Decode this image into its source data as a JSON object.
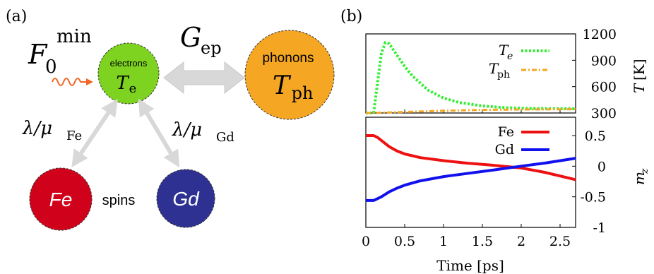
{
  "panel_a": {
    "label": "(a)",
    "fluence": {
      "main": "F",
      "sub": "0",
      "sup": "min"
    },
    "coupling_ep": {
      "main": "G",
      "sub": "ep"
    },
    "electrons": {
      "title": "electrons",
      "temp_main": "T",
      "temp_sub": "e",
      "color": "#7ed321"
    },
    "phonons": {
      "title": "phonons",
      "temp_main": "T",
      "temp_sub": "ph",
      "color": "#f5a623"
    },
    "coupling_fe": {
      "lambda": "λ/μ",
      "sub": "Fe"
    },
    "coupling_gd": {
      "lambda": "λ/μ",
      "sub": "Gd"
    },
    "fe_label": "Fe",
    "gd_label": "Gd",
    "spins_label": "spins",
    "fe_color": "#d0021b",
    "gd_color": "#2e3192",
    "arrow_color": "#d8d8d8",
    "laser_color": "#f26522"
  },
  "panel_b": {
    "label": "(b)",
    "x_label": "Time [ps]",
    "x_ticks": [
      "0",
      "0.5",
      "1",
      "1.5",
      "2",
      "2.5"
    ],
    "top_y_label_main": "T",
    "top_y_label_unit": "[K]",
    "top_y_ticks": [
      "300",
      "600",
      "900",
      "1200"
    ],
    "bottom_y_label_main": "m",
    "bottom_y_label_sub": "z",
    "bottom_y_ticks": [
      "-1",
      "-0.5",
      "0",
      "0.5"
    ],
    "legend_top": [
      {
        "main": "T",
        "sub": "e"
      },
      {
        "main": "T",
        "sub": "ph"
      }
    ],
    "legend_bottom": [
      "Fe",
      "Gd"
    ]
  },
  "chart_data": [
    {
      "type": "line",
      "xlabel": "Time [ps]",
      "ylabel": "T [K]",
      "xlim": [
        0,
        2.7
      ],
      "ylim": [
        300,
        1200
      ],
      "series": [
        {
          "name": "T_e",
          "color": "#33ee33",
          "style": "dotted",
          "x": [
            0,
            0.1,
            0.15,
            0.2,
            0.25,
            0.3,
            0.4,
            0.5,
            0.6,
            0.8,
            1.0,
            1.2,
            1.5,
            1.8,
            2.1,
            2.4,
            2.7
          ],
          "y": [
            300,
            300,
            640,
            980,
            1100,
            1090,
            960,
            830,
            720,
            560,
            470,
            420,
            380,
            360,
            352,
            350,
            348
          ]
        },
        {
          "name": "T_ph",
          "color": "#f5a623",
          "style": "dashdot",
          "x": [
            0,
            0.2,
            0.5,
            1.0,
            1.5,
            2.0,
            2.7
          ],
          "y": [
            300,
            303,
            312,
            325,
            335,
            340,
            343
          ]
        }
      ]
    },
    {
      "type": "line",
      "xlabel": "Time [ps]",
      "ylabel": "m_z",
      "xlim": [
        0,
        2.7
      ],
      "ylim": [
        -1,
        0.8
      ],
      "series": [
        {
          "name": "Fe",
          "color": "#ee1111",
          "x": [
            0,
            0.1,
            0.15,
            0.2,
            0.3,
            0.4,
            0.5,
            0.7,
            1.0,
            1.3,
            1.6,
            2.0,
            2.3,
            2.7
          ],
          "y": [
            0.5,
            0.5,
            0.47,
            0.42,
            0.32,
            0.25,
            0.2,
            0.14,
            0.09,
            0.05,
            0.02,
            -0.03,
            -0.1,
            -0.22
          ]
        },
        {
          "name": "Gd",
          "color": "#1111ee",
          "x": [
            0,
            0.1,
            0.15,
            0.2,
            0.3,
            0.4,
            0.5,
            0.7,
            1.0,
            1.3,
            1.6,
            2.0,
            2.3,
            2.7
          ],
          "y": [
            -0.56,
            -0.56,
            -0.53,
            -0.5,
            -0.42,
            -0.36,
            -0.31,
            -0.24,
            -0.17,
            -0.12,
            -0.07,
            0.0,
            0.05,
            0.13
          ]
        }
      ]
    }
  ]
}
